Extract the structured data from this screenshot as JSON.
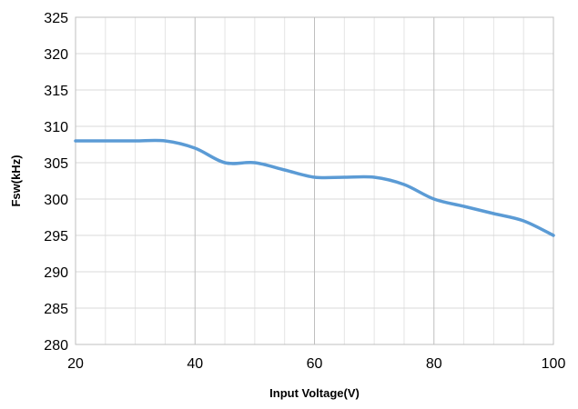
{
  "chart_data": {
    "type": "line",
    "title": "",
    "xlabel": "Input Voltage(V)",
    "ylabel": "Fsw(kHz)",
    "xlim": [
      20,
      100
    ],
    "ylim": [
      280,
      325
    ],
    "x_ticks": [
      20,
      40,
      60,
      80,
      100
    ],
    "y_ticks": [
      280,
      285,
      290,
      295,
      300,
      305,
      310,
      315,
      320,
      325
    ],
    "x_minor_step": 5,
    "grid": true,
    "legend": "none",
    "series": [
      {
        "color": "#5b9bd5",
        "points": [
          {
            "x": 20,
            "y": 308
          },
          {
            "x": 25,
            "y": 308
          },
          {
            "x": 30,
            "y": 308
          },
          {
            "x": 35,
            "y": 308
          },
          {
            "x": 40,
            "y": 307
          },
          {
            "x": 45,
            "y": 305
          },
          {
            "x": 50,
            "y": 305
          },
          {
            "x": 55,
            "y": 304
          },
          {
            "x": 60,
            "y": 303
          },
          {
            "x": 65,
            "y": 303
          },
          {
            "x": 70,
            "y": 303
          },
          {
            "x": 75,
            "y": 302
          },
          {
            "x": 80,
            "y": 300
          },
          {
            "x": 85,
            "y": 299
          },
          {
            "x": 90,
            "y": 298
          },
          {
            "x": 95,
            "y": 297
          },
          {
            "x": 100,
            "y": 295
          }
        ]
      }
    ]
  }
}
